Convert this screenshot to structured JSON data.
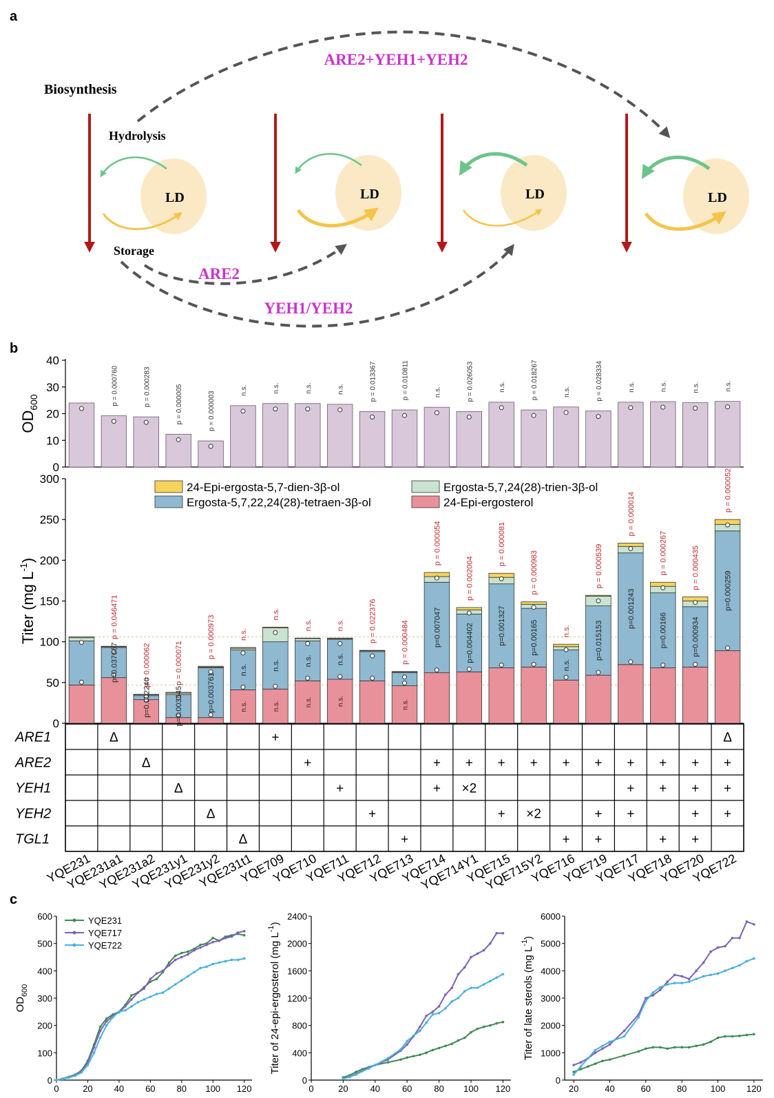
{
  "panel_a": {
    "label": "a",
    "biosynthesis": "Biosynthesis",
    "hydrolysis": "Hydrolysis",
    "storage": "Storage",
    "ld": "LD",
    "arrow_top": "ARE2+YEH1+YEH2",
    "arrow_are2": "ARE2",
    "arrow_yeh": "YEH1/YEH2"
  },
  "panel_b_label": "b",
  "panel_c_label": "c",
  "chart_data": [
    {
      "type": "bar",
      "id": "od600_bars",
      "ylabel_main": "OD",
      "ylabel_sub": "600",
      "ylim": [
        0,
        40
      ],
      "yticks": [
        "0",
        "10",
        "20",
        "30",
        "40"
      ],
      "categories": [
        "YQE231",
        "YQE231a1",
        "YQE231a2",
        "YQE231y1",
        "YQE231y2",
        "YQE231t1",
        "YQE709",
        "YQE710",
        "YQE711",
        "YQE712",
        "YQE713",
        "YQE714",
        "YQE714Y1",
        "YQE715",
        "YQE715Y2",
        "YQE716",
        "YQE719",
        "YQE717",
        "YQE718",
        "YQE720",
        "YQE722"
      ],
      "values": [
        24,
        19.2,
        18.8,
        12.3,
        9.8,
        23,
        23.8,
        23.8,
        23.5,
        20.8,
        21.4,
        22.4,
        20.8,
        24.3,
        21.4,
        22.5,
        21,
        24.3,
        24.5,
        24.1,
        24.6
      ],
      "annotations": [
        "",
        "p = 0.000760",
        "p = 0.000283",
        "p = 0.000005",
        "p = 0.000003",
        "n.s.",
        "n.s.",
        "n.s.",
        "n.s.",
        "p = 0.013367",
        "p = 0.010811",
        "n.s.",
        "p = 0.026053",
        "n.s.",
        "p = 0.018267",
        "n.s.",
        "p = 0.028334",
        "n.s.",
        "n.s.",
        "n.s.",
        "n.s."
      ]
    },
    {
      "type": "bar",
      "id": "titer_stacked",
      "ylabel_main": "Titer (mg L",
      "ylabel_sup": "-1",
      "ylabel_end": ")",
      "ylim": [
        0,
        300
      ],
      "yticks": [
        "0",
        "50",
        "100",
        "150",
        "200",
        "250",
        "300"
      ],
      "series": [
        {
          "name": "24-Epi-ergosterol",
          "color": "#e8919a",
          "values": [
            47,
            56,
            29,
            7,
            7,
            41,
            42,
            52,
            54,
            52,
            46,
            62,
            63,
            68,
            69,
            53,
            59,
            72,
            68,
            69,
            89
          ]
        },
        {
          "name": "Ergosta-5,7,22,24(28)-tetraen-3β-ol",
          "color": "#8fb8d1",
          "values": [
            54,
            37,
            5,
            28,
            61,
            49,
            58,
            49,
            49,
            36,
            16,
            111,
            71,
            103,
            72,
            37,
            85,
            137,
            92,
            74,
            147
          ]
        },
        {
          "name": "Ergosta-5,7,24(28)-trien-3β-ol",
          "color": "#c8e3cf",
          "values": [
            4,
            1,
            1,
            2,
            1,
            2,
            17,
            3,
            1,
            1,
            1,
            7,
            5,
            8,
            5,
            4,
            12,
            8,
            8,
            7,
            8
          ]
        },
        {
          "name": "24-Epi-ergosta-5,7-dien-3β-ol",
          "color": "#f5d45a",
          "values": [
            1,
            0.5,
            0.5,
            1,
            1,
            1,
            1,
            0.5,
            0.5,
            0.5,
            0.5,
            5,
            3,
            5,
            3,
            3,
            1,
            4,
            5,
            5,
            6
          ]
        }
      ],
      "total_annotations": [
        "",
        "p = 0.046471",
        "p = 0.000062",
        "p = 0.000071",
        "p = 0.000973",
        "n.s.",
        "n.s.",
        "n.s.",
        "n.s.",
        "p = 0.022376",
        "p = 0.000484",
        "p = 0.000054",
        "p = 0.002004",
        "p = 0.000081",
        "p = 0.000983",
        "n.s.",
        "p = 0.000539",
        "p = 0.000014",
        "p = 0.000267",
        "p = 0.000435",
        "p = 0.000052"
      ],
      "blue_annotations": [
        "",
        "p=0.037667",
        "p=0.002240",
        "p=0.003645",
        "p=0.003761",
        "n.s.",
        "n.s.",
        "n.s.",
        "n.s.",
        "",
        "",
        "p=0.007047",
        "p=0.004402",
        "p=0.001327",
        "p=0.00165",
        "n.s.",
        "p=0.015153",
        "p=0.001243",
        "p=0.00166",
        "p=0.000934",
        "p=0.000259"
      ],
      "pink_annotations": [
        "",
        "",
        "",
        "",
        "",
        "n.s.",
        "n.s.",
        "n.s.",
        "n.s.",
        "",
        "n.s.",
        "",
        "",
        "",
        "",
        "",
        "",
        "",
        "",
        "",
        ""
      ]
    },
    {
      "type": "table",
      "id": "genotype_table",
      "rows": [
        {
          "gene": "ARE1",
          "cells": [
            "",
            "Δ",
            "",
            "",
            "",
            "",
            "+",
            "",
            "",
            "",
            "",
            "",
            "",
            "",
            "",
            "",
            "",
            "",
            "",
            "",
            "Δ"
          ]
        },
        {
          "gene": "ARE2",
          "cells": [
            "",
            "",
            "Δ",
            "",
            "",
            "",
            "",
            "+",
            "",
            "",
            "",
            "+",
            "+",
            "+",
            "+",
            "+",
            "+",
            "+",
            "+",
            "+",
            "+"
          ]
        },
        {
          "gene": "YEH1",
          "cells": [
            "",
            "",
            "",
            "Δ",
            "",
            "",
            "",
            "",
            "+",
            "",
            "",
            "+",
            "×2",
            "",
            "",
            "",
            "",
            "+",
            "+",
            "+",
            "+"
          ]
        },
        {
          "gene": "YEH2",
          "cells": [
            "",
            "",
            "",
            "",
            "Δ",
            "",
            "",
            "",
            "",
            "+",
            "",
            "",
            "",
            "+",
            "×2",
            "",
            "+",
            "+",
            "",
            "+",
            "+"
          ]
        },
        {
          "gene": "TGL1",
          "cells": [
            "",
            "",
            "",
            "",
            "",
            "Δ",
            "",
            "",
            "",
            "",
            "+",
            "",
            "",
            "",
            "",
            "+",
            "+",
            "",
            "+",
            "+",
            ""
          ]
        }
      ]
    },
    {
      "type": "line",
      "id": "growth_od600",
      "xlabel": "Time (h)",
      "ylabel_main": "OD",
      "ylabel_sub": "600",
      "xlim": [
        0,
        125
      ],
      "ylim": [
        0,
        600
      ],
      "xticks": [
        "0",
        "20",
        "40",
        "60",
        "80",
        "100",
        "120"
      ],
      "yticks": [
        "0",
        "100",
        "200",
        "300",
        "400",
        "500",
        "600"
      ],
      "series": [
        {
          "name": "YQE231",
          "color": "#3f8a53",
          "x": [
            0,
            4,
            8,
            12,
            16,
            20,
            24,
            28,
            32,
            36,
            40,
            44,
            48,
            52,
            56,
            60,
            64,
            68,
            72,
            76,
            80,
            84,
            88,
            92,
            96,
            100,
            104,
            108,
            112,
            116,
            120
          ],
          "y": [
            0,
            5,
            12,
            20,
            35,
            70,
            130,
            195,
            225,
            240,
            250,
            275,
            310,
            320,
            340,
            360,
            370,
            395,
            430,
            455,
            465,
            470,
            480,
            495,
            500,
            520,
            510,
            525,
            530,
            535,
            530
          ]
        },
        {
          "name": "YQE717",
          "color": "#7b62b3",
          "x": [
            0,
            4,
            8,
            12,
            16,
            20,
            24,
            28,
            32,
            36,
            40,
            44,
            48,
            52,
            56,
            60,
            64,
            68,
            72,
            76,
            80,
            84,
            88,
            92,
            96,
            100,
            104,
            108,
            112,
            116,
            120
          ],
          "y": [
            0,
            5,
            10,
            18,
            32,
            65,
            120,
            180,
            215,
            235,
            248,
            270,
            295,
            320,
            335,
            370,
            390,
            400,
            420,
            440,
            450,
            460,
            475,
            485,
            495,
            505,
            510,
            520,
            525,
            540,
            545
          ]
        },
        {
          "name": "YQE722",
          "color": "#4ab0e0",
          "x": [
            0,
            4,
            8,
            12,
            16,
            20,
            24,
            28,
            32,
            36,
            40,
            44,
            48,
            52,
            56,
            60,
            64,
            68,
            72,
            76,
            80,
            84,
            88,
            92,
            96,
            100,
            104,
            108,
            112,
            116,
            120
          ],
          "y": [
            0,
            4,
            9,
            16,
            28,
            55,
            100,
            155,
            200,
            230,
            250,
            255,
            270,
            285,
            295,
            305,
            315,
            320,
            335,
            350,
            365,
            380,
            395,
            410,
            415,
            425,
            430,
            435,
            440,
            440,
            445
          ]
        }
      ]
    },
    {
      "type": "line",
      "id": "titer_24epi",
      "xlabel": "Time (h)",
      "ylabel": "Titer of 24-epi-ergosterol (mg L",
      "ylabel_sup": "-1",
      "ylabel_end": ")",
      "xlim": [
        0,
        125
      ],
      "ylim": [
        0,
        2400
      ],
      "xticks": [
        "0",
        "20",
        "40",
        "60",
        "80",
        "100",
        "120"
      ],
      "yticks": [
        "0",
        "400",
        "800",
        "1200",
        "1600",
        "2000",
        "2400"
      ],
      "series": [
        {
          "name": "YQE231",
          "color": "#3f8a53",
          "x": [
            20,
            24,
            28,
            32,
            36,
            40,
            48,
            56,
            60,
            64,
            68,
            72,
            76,
            80,
            84,
            88,
            92,
            96,
            100,
            104,
            108,
            112,
            116,
            120
          ],
          "y": [
            40,
            70,
            120,
            160,
            190,
            220,
            260,
            300,
            330,
            350,
            370,
            400,
            440,
            470,
            500,
            530,
            580,
            620,
            700,
            750,
            780,
            800,
            830,
            850
          ]
        },
        {
          "name": "YQE717",
          "color": "#7b62b3",
          "x": [
            20,
            24,
            28,
            32,
            36,
            40,
            48,
            56,
            60,
            64,
            68,
            72,
            76,
            80,
            84,
            88,
            92,
            96,
            100,
            104,
            108,
            112,
            116,
            120
          ],
          "y": [
            20,
            50,
            90,
            140,
            180,
            220,
            300,
            430,
            520,
            640,
            780,
            940,
            1000,
            1080,
            1250,
            1350,
            1550,
            1650,
            1800,
            1850,
            1900,
            2000,
            2150,
            2150
          ]
        },
        {
          "name": "YQE722",
          "color": "#4ab0e0",
          "x": [
            20,
            24,
            28,
            32,
            36,
            40,
            48,
            56,
            60,
            64,
            68,
            72,
            76,
            80,
            84,
            88,
            92,
            96,
            100,
            104,
            108,
            112,
            116,
            120
          ],
          "y": [
            20,
            45,
            80,
            130,
            170,
            220,
            320,
            450,
            570,
            650,
            720,
            840,
            960,
            980,
            1050,
            1150,
            1200,
            1300,
            1350,
            1350,
            1400,
            1450,
            1500,
            1550
          ]
        }
      ]
    },
    {
      "type": "line",
      "id": "titer_late_sterols",
      "xlabel": "Time (h)",
      "ylabel": "Titer of late sterols (mg L",
      "ylabel_sup": "-1",
      "ylabel_end": ")",
      "xlim": [
        15,
        125
      ],
      "ylim": [
        0,
        6000
      ],
      "xticks": [
        "20",
        "40",
        "60",
        "80",
        "100",
        "120"
      ],
      "yticks": [
        "0",
        "1000",
        "2000",
        "3000",
        "4000",
        "5000",
        "6000"
      ],
      "series": [
        {
          "name": "YQE231",
          "color": "#3f8a53",
          "x": [
            20,
            24,
            28,
            32,
            36,
            40,
            48,
            56,
            60,
            64,
            68,
            72,
            76,
            80,
            84,
            88,
            92,
            96,
            100,
            104,
            108,
            112,
            116,
            120
          ],
          "y": [
            300,
            400,
            500,
            600,
            700,
            750,
            900,
            1050,
            1150,
            1200,
            1200,
            1150,
            1200,
            1200,
            1200,
            1250,
            1300,
            1400,
            1550,
            1600,
            1600,
            1620,
            1650,
            1680
          ]
        },
        {
          "name": "YQE717",
          "color": "#7b62b3",
          "x": [
            20,
            24,
            28,
            32,
            36,
            40,
            48,
            56,
            60,
            64,
            68,
            72,
            76,
            80,
            84,
            88,
            92,
            96,
            100,
            104,
            108,
            112,
            116,
            120
          ],
          "y": [
            550,
            650,
            800,
            1000,
            1150,
            1300,
            1800,
            2400,
            3000,
            3100,
            3300,
            3600,
            3850,
            3800,
            3700,
            4000,
            4300,
            4700,
            4850,
            4900,
            5200,
            5200,
            5800,
            5700
          ]
        },
        {
          "name": "YQE722",
          "color": "#4ab0e0",
          "x": [
            20,
            24,
            28,
            32,
            36,
            40,
            48,
            56,
            60,
            64,
            68,
            72,
            76,
            80,
            84,
            88,
            92,
            96,
            100,
            104,
            108,
            112,
            116,
            120
          ],
          "y": [
            200,
            500,
            800,
            1100,
            1250,
            1400,
            1600,
            2300,
            2900,
            3200,
            3400,
            3500,
            3550,
            3550,
            3600,
            3700,
            3800,
            3850,
            3900,
            4000,
            4100,
            4200,
            4350,
            4450
          ]
        }
      ]
    }
  ]
}
